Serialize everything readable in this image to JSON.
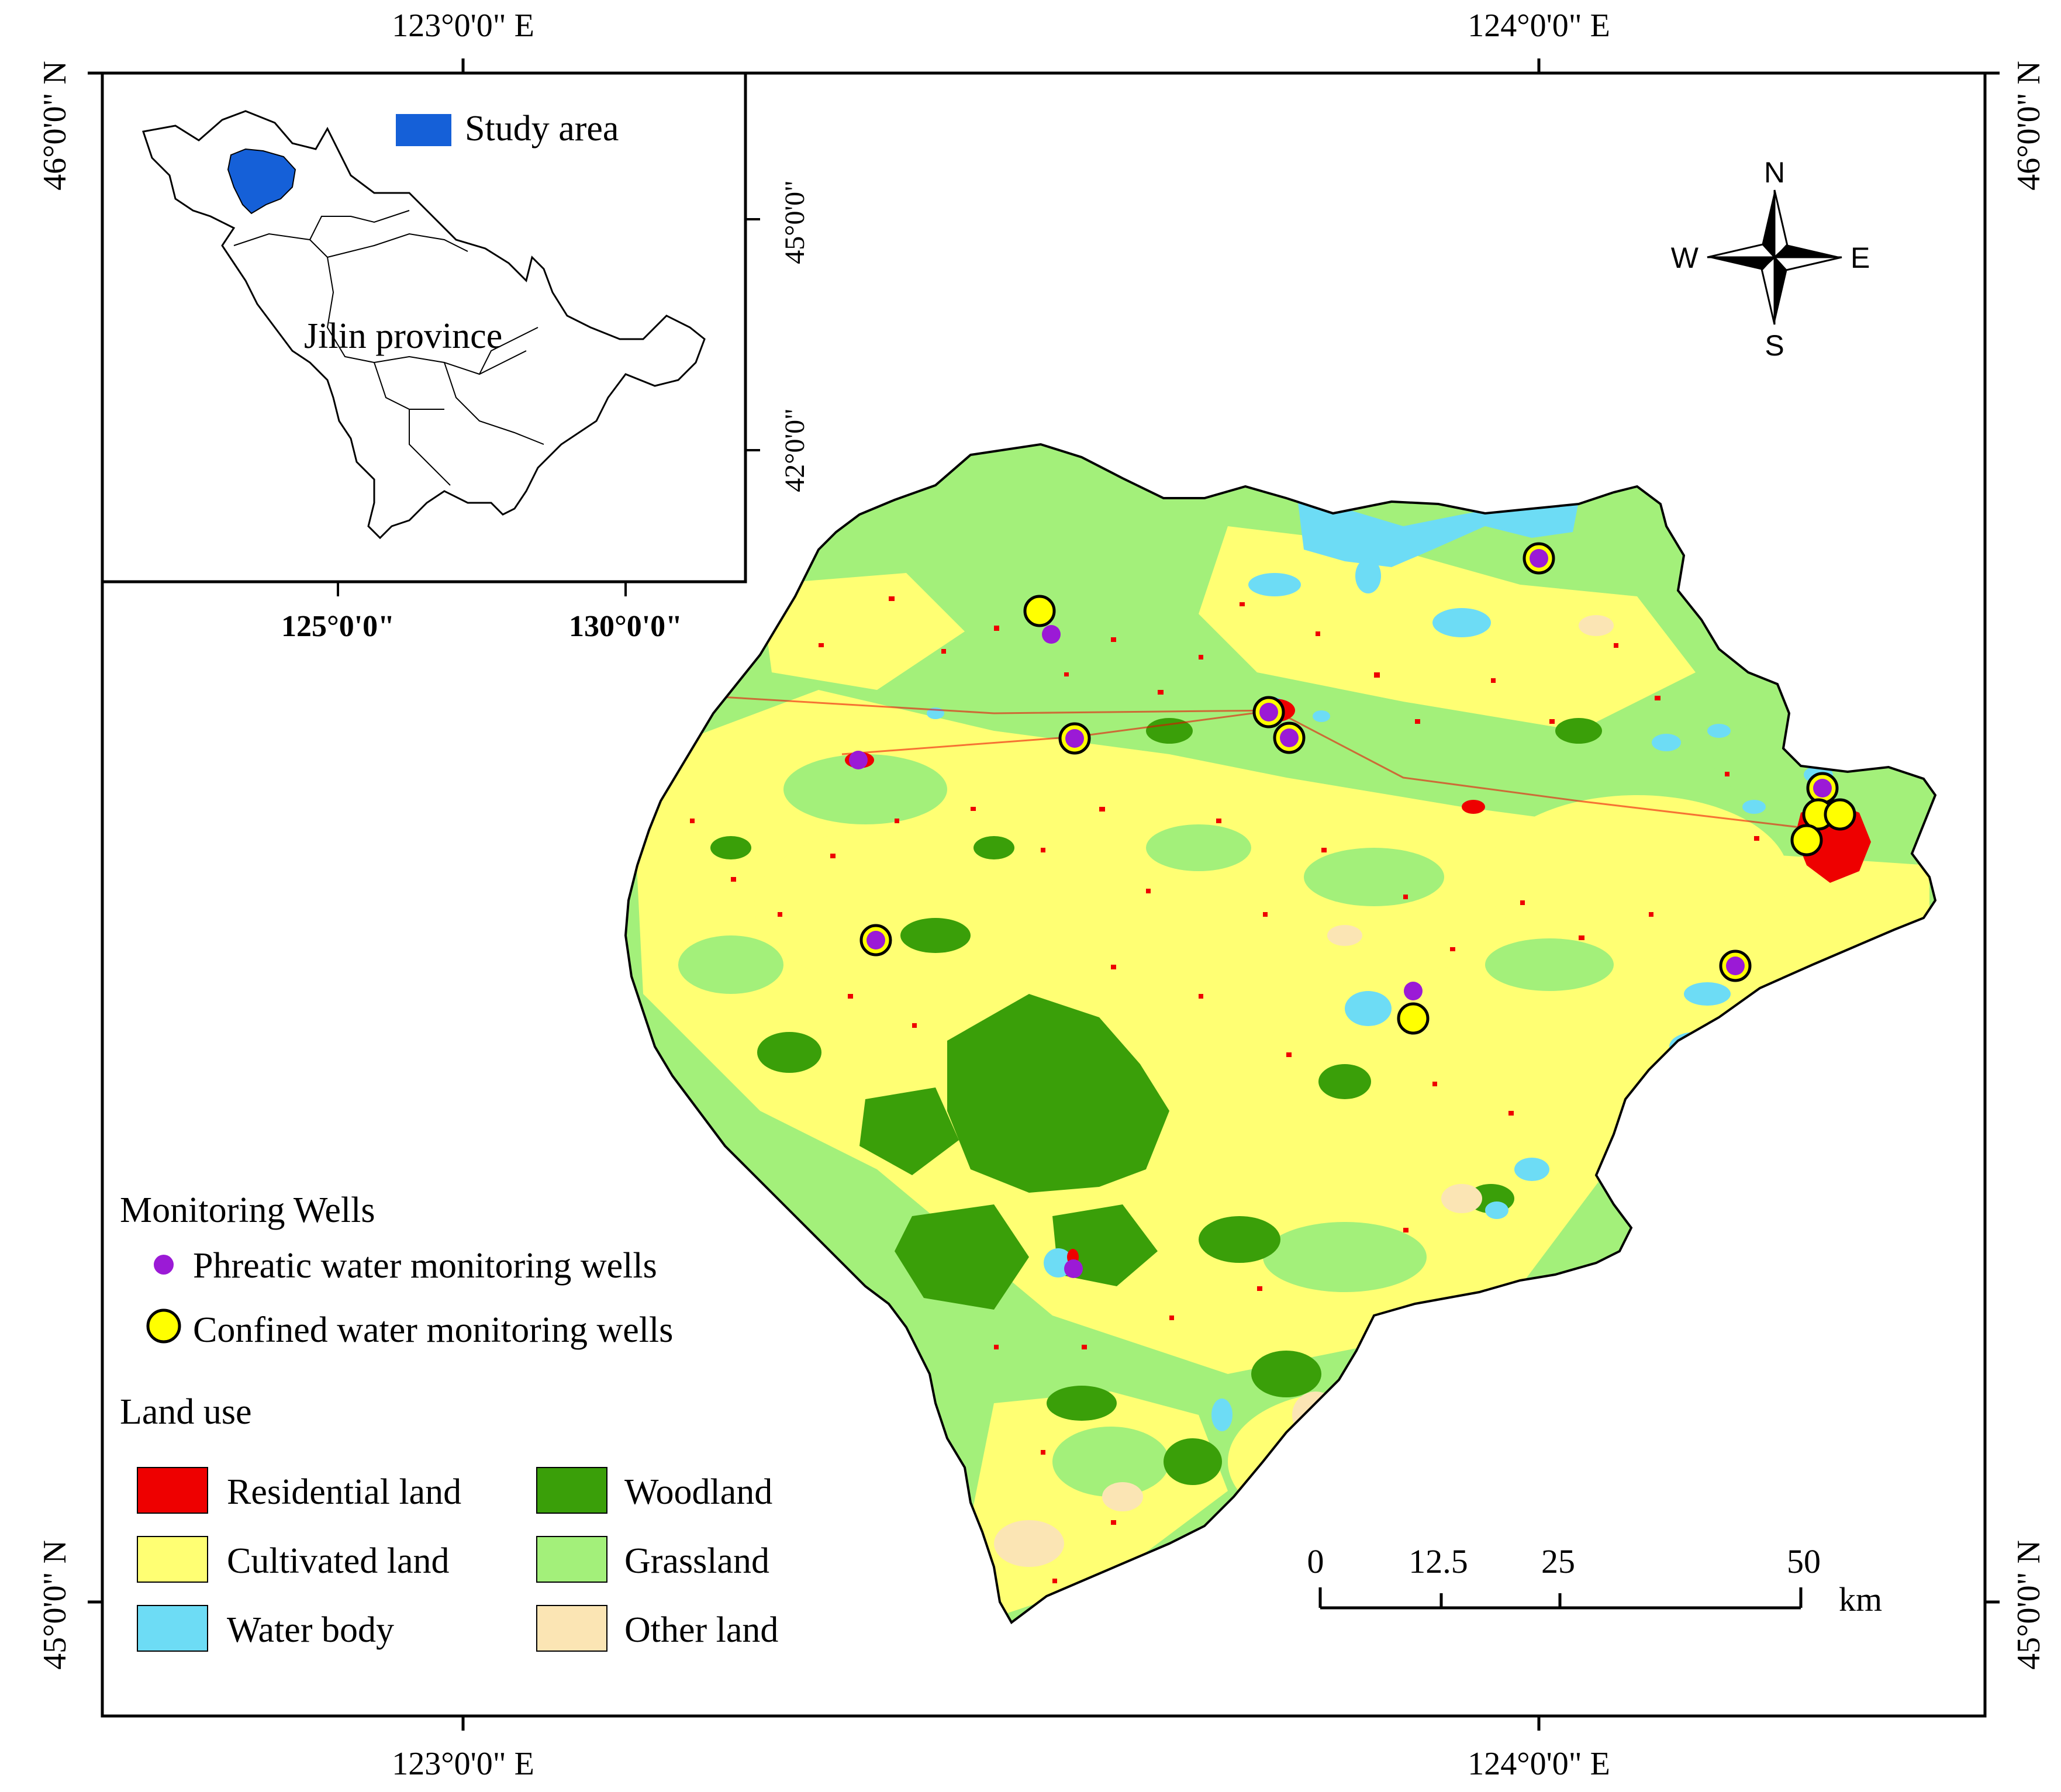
{
  "coords": {
    "top_left_lon": "123°0'0\" E",
    "top_right_lon": "124°0'0\" E",
    "bottom_left_lon": "123°0'0\" E",
    "bottom_right_lon": "124°0'0\" E",
    "left_top_lat": "46°0'0\" N",
    "left_bottom_lat": "45°0'0\" N",
    "right_top_lat": "46°0'0\" N",
    "right_bottom_lat": "45°0'0\" N"
  },
  "inset": {
    "legend_label": "Study area",
    "province_label": "Jilin province",
    "lat_upper": "45°0'0\"",
    "lat_lower": "42°0'0\"",
    "lon_left": "125°0'0\"",
    "lon_right": "130°0'0\"",
    "study_area_color": "#1560d8"
  },
  "north_arrow": {
    "n": "N",
    "s": "S",
    "e": "E",
    "w": "W"
  },
  "scale_bar": {
    "ticks": [
      "0",
      "12.5",
      "25",
      "50"
    ],
    "unit": "km"
  },
  "legend": {
    "wells_title": "Monitoring Wells",
    "phreatic_label": "Phreatic water monitoring wells",
    "confined_label": "Confined water monitoring wells",
    "landuse_title": "Land use",
    "classes": [
      {
        "label": "Residential land",
        "color": "#ee0000"
      },
      {
        "label": "Woodland",
        "color": "#3a9f09"
      },
      {
        "label": "Cultivated land",
        "color": "#ffff73"
      },
      {
        "label": "Grassland",
        "color": "#a3f07a"
      },
      {
        "label": "Water body",
        "color": "#6ddcf5"
      },
      {
        "label": "Other land",
        "color": "#fbe5b4"
      }
    ]
  },
  "colors": {
    "phreatic": "#9b1ad6",
    "confined": "#ffff00",
    "residential": "#ee0000",
    "woodland": "#3a9f09",
    "cultivated": "#ffff73",
    "grassland": "#a3f07a",
    "water": "#6ddcf5",
    "other": "#fbe5b4"
  },
  "wells": {
    "confined_count": 15,
    "phreatic_count": 13
  }
}
